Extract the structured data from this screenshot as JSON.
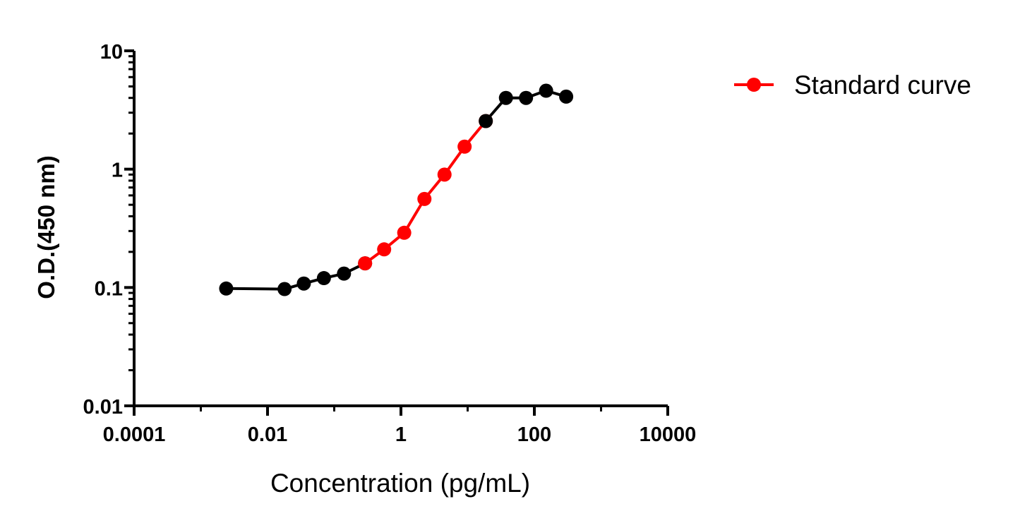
{
  "chart_data": {
    "type": "line",
    "title": "",
    "xlabel": "Concentration (pg/mL)",
    "ylabel": "O.D.(450 nm)",
    "x_scale": "log",
    "y_scale": "log",
    "xlim": [
      0.0001,
      10000
    ],
    "ylim": [
      0.01,
      10
    ],
    "x_ticks": [
      {
        "value": 0.0001,
        "label": "0.0001"
      },
      {
        "value": 0.01,
        "label": "0.01"
      },
      {
        "value": 1,
        "label": "1"
      },
      {
        "value": 100,
        "label": "100"
      },
      {
        "value": 10000,
        "label": "10000"
      }
    ],
    "y_ticks": [
      {
        "value": 0.01,
        "label": "0.01"
      },
      {
        "value": 0.1,
        "label": "0.1"
      },
      {
        "value": 1,
        "label": "1"
      },
      {
        "value": 10,
        "label": "10"
      }
    ],
    "grid": false,
    "legend_position": "top-right",
    "series": [
      {
        "name": "",
        "color": "#000000",
        "x": [
          0.0024,
          0.018,
          0.035,
          0.07,
          0.14,
          0.29
        ],
        "y": [
          0.098,
          0.097,
          0.108,
          0.12,
          0.131,
          0.16
        ]
      },
      {
        "name": "Standard curve",
        "color": "#ff0000",
        "x": [
          0.29,
          0.56,
          1.12,
          2.25,
          4.5,
          9.0,
          18.7
        ],
        "y": [
          0.16,
          0.21,
          0.29,
          0.56,
          0.9,
          1.55,
          2.55
        ]
      },
      {
        "name": "",
        "color": "#000000",
        "x": [
          18.7,
          37.5,
          75,
          150,
          300
        ],
        "y": [
          2.55,
          4.0,
          4.0,
          4.6,
          4.1
        ]
      }
    ]
  }
}
